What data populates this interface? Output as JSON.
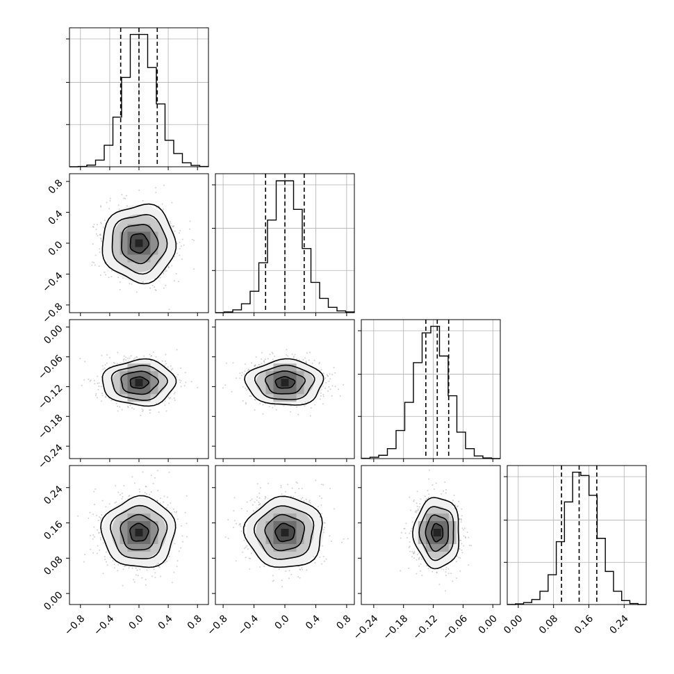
{
  "chart_data": {
    "type": "corner",
    "parameters": [
      {
        "index": 0,
        "range": [
          -0.95,
          0.95
        ],
        "ticks": [
          -0.8,
          -0.4,
          0.0,
          0.4,
          0.8
        ],
        "tick_labels": [
          "−0.8",
          "−0.4",
          "0.0",
          "0.4",
          "0.8"
        ],
        "mean": 0.0,
        "sigma": 0.25,
        "quantiles": [
          -0.25,
          0.0,
          0.25
        ],
        "hist_counts": [
          0,
          1,
          5,
          20,
          65,
          150,
          270,
          400,
          400,
          300,
          190,
          80,
          40,
          12,
          4,
          1
        ],
        "hist_ymax": 420
      },
      {
        "index": 1,
        "range": [
          -0.9,
          0.9
        ],
        "ticks": [
          -0.8,
          -0.4,
          0.0,
          0.4,
          0.8
        ],
        "tick_labels": [
          "−0.8",
          "−0.4",
          "0.0",
          "0.4",
          "0.8"
        ],
        "mean": 0.0,
        "sigma": 0.25,
        "quantiles": [
          -0.25,
          0.0,
          0.25
        ],
        "hist_counts": [
          0,
          2,
          8,
          25,
          60,
          140,
          260,
          370,
          370,
          290,
          180,
          85,
          40,
          15,
          5,
          2
        ],
        "hist_ymax": 390
      },
      {
        "index": 2,
        "range": [
          -0.265,
          0.015
        ],
        "ticks": [
          -0.24,
          -0.18,
          -0.12,
          -0.06,
          0.0
        ],
        "tick_labels": [
          "−0.24",
          "−0.18",
          "−0.12",
          "−0.06",
          "0.00"
        ],
        "mean": -0.112,
        "sigma": 0.023,
        "quantiles": [
          -0.135,
          -0.112,
          -0.089
        ],
        "hist_counts": [
          1,
          4,
          10,
          30,
          85,
          170,
          290,
          380,
          400,
          310,
          190,
          80,
          30,
          8,
          2,
          0
        ],
        "hist_ymax": 420
      },
      {
        "index": 3,
        "range": [
          -0.025,
          0.29
        ],
        "ticks": [
          0.0,
          0.08,
          0.16,
          0.24
        ],
        "tick_labels": [
          "0.00",
          "0.08",
          "0.16",
          "0.24"
        ],
        "mean": 0.138,
        "sigma": 0.04,
        "quantiles": [
          0.098,
          0.138,
          0.178
        ],
        "hist_counts": [
          0,
          2,
          6,
          15,
          40,
          90,
          190,
          310,
          400,
          390,
          330,
          200,
          100,
          40,
          12,
          3,
          0
        ],
        "hist_ymax": 420
      }
    ],
    "contour_levels_sigma": [
      0.5,
      1.0,
      1.5,
      2.0
    ],
    "colors": {
      "hist": "#000000",
      "contour": "#000000",
      "points": "#9a9a9a",
      "grid": "#b0b0b0",
      "density": "#000000"
    },
    "grid": true
  }
}
